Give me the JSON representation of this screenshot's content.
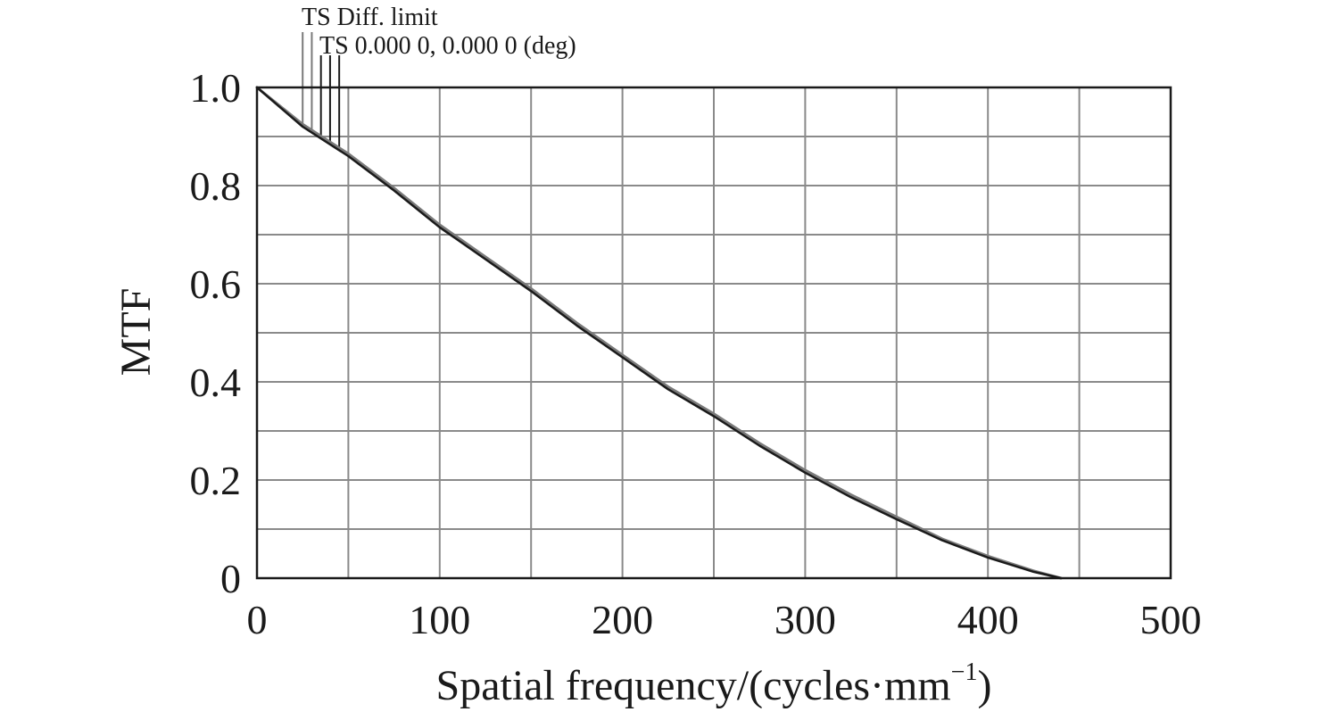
{
  "chart_data": {
    "type": "line",
    "xlabel": "Spatial frequency/(cycles·mm",
    "xlabel_sup": "−1",
    "xlabel_suffix": ")",
    "ylabel": "MTF",
    "xlim": [
      0,
      500
    ],
    "ylim": [
      0,
      1.0
    ],
    "x_ticks": [
      0,
      100,
      200,
      300,
      400,
      500
    ],
    "x_tick_labels": [
      "0",
      "100",
      "200",
      "300",
      "400",
      "500"
    ],
    "y_ticks": [
      0,
      0.2,
      0.4,
      0.6,
      0.8,
      1.0
    ],
    "y_tick_labels": [
      "0",
      "0.2",
      "0.4",
      "0.6",
      "0.8",
      "1.0"
    ],
    "x_grid_step": 50,
    "y_grid_step": 0.1,
    "grid": true,
    "legend": [
      {
        "label": "TS Diff. limit"
      },
      {
        "label": "TS 0.000 0, 0.000 0 (deg)"
      }
    ],
    "legend_position": "top-left",
    "series": [
      {
        "color": "#7a7a7a",
        "x": [
          0,
          25,
          50,
          75,
          100,
          125,
          150,
          175,
          200,
          225,
          250,
          275,
          300,
          325,
          350,
          375,
          400,
          425,
          440
        ],
        "y": [
          1.0,
          0.925,
          0.865,
          0.795,
          0.72,
          0.655,
          0.59,
          0.52,
          0.455,
          0.39,
          0.335,
          0.275,
          0.22,
          0.17,
          0.125,
          0.08,
          0.045,
          0.015,
          0.0
        ]
      },
      {
        "color": "#1a1a1a",
        "x": [
          0,
          25,
          50,
          75,
          100,
          125,
          150,
          175,
          200,
          225,
          250,
          275,
          300,
          325,
          350,
          375,
          400,
          425,
          440
        ],
        "y": [
          1.0,
          0.92,
          0.86,
          0.79,
          0.715,
          0.65,
          0.585,
          0.515,
          0.45,
          0.385,
          0.33,
          0.27,
          0.215,
          0.165,
          0.12,
          0.077,
          0.042,
          0.013,
          0.0
        ]
      }
    ],
    "legend_markers": {
      "series_0_x": [
        25,
        30
      ],
      "series_1_x": [
        35,
        40,
        45
      ]
    }
  }
}
